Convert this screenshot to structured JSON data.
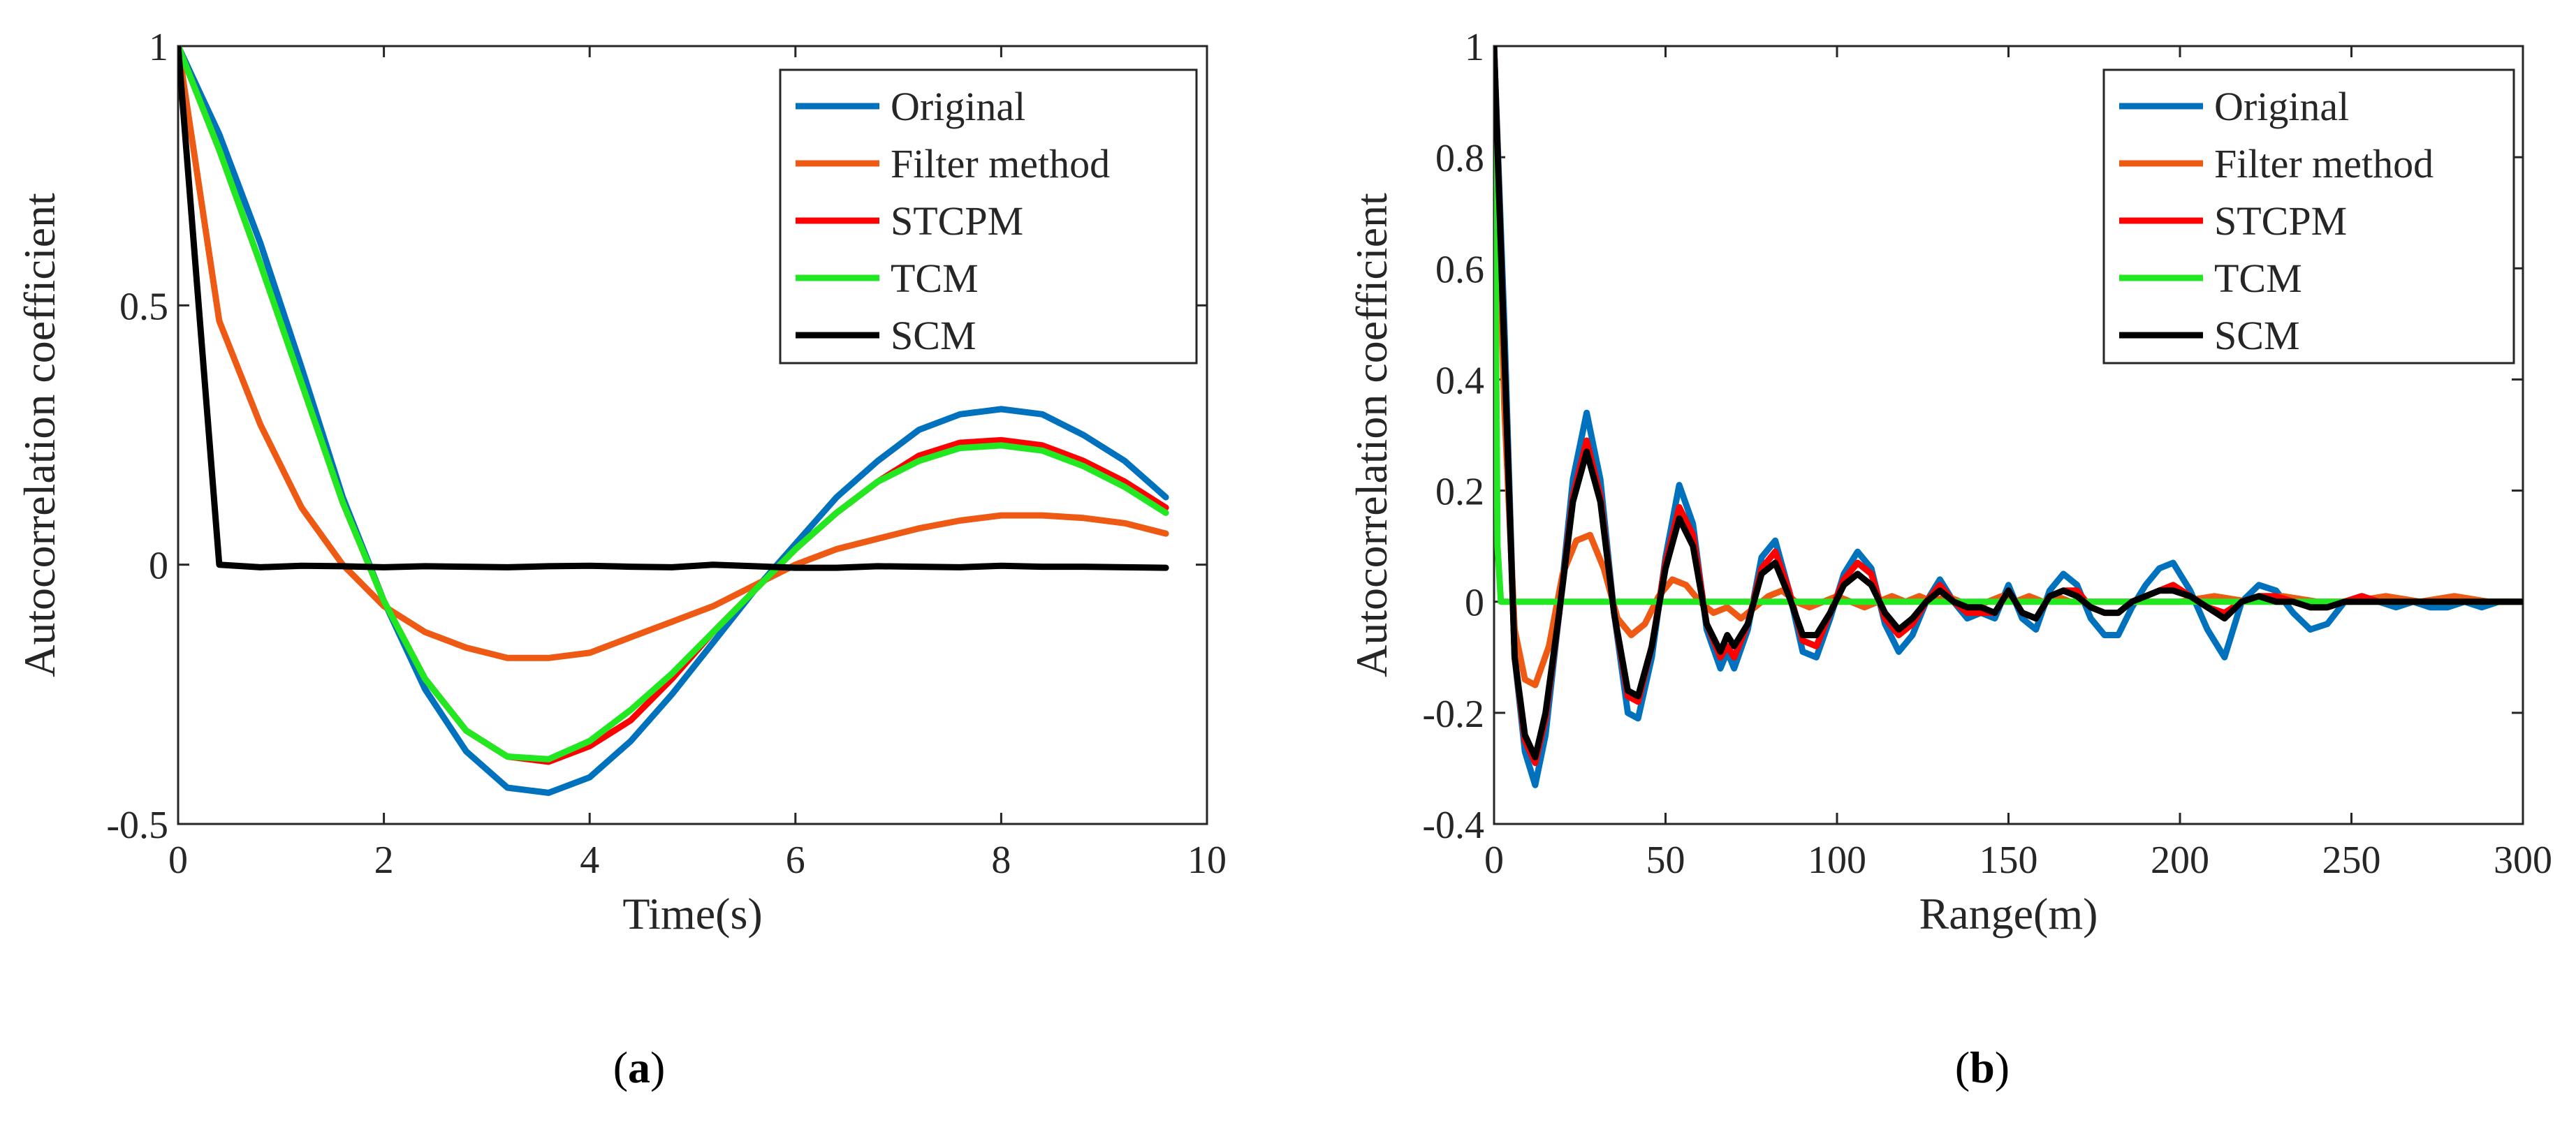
{
  "chart_data": [
    {
      "type": "line",
      "caption_open": "(",
      "caption_letter": "a",
      "caption_close": ")",
      "xlabel": "Time(s)",
      "ylabel": "Autocorrelation coefficient",
      "xlim": [
        0,
        10
      ],
      "ylim": [
        -0.5,
        1
      ],
      "xticks": [
        0,
        2,
        4,
        6,
        8,
        10
      ],
      "yticks": [
        -0.5,
        0,
        0.5,
        1
      ],
      "xtick_labels": [
        "0",
        "2",
        "4",
        "6",
        "8",
        "10"
      ],
      "ytick_labels": [
        "-0.5",
        "0",
        "0.5",
        "1"
      ],
      "legend_position": "top-right",
      "series": [
        {
          "name": "Original",
          "color": "#0072BD",
          "x": [
            0,
            0.4,
            0.8,
            1.2,
            1.6,
            2.0,
            2.4,
            2.8,
            3.2,
            3.6,
            4.0,
            4.4,
            4.8,
            5.2,
            5.6,
            6.0,
            6.4,
            6.8,
            7.2,
            7.6,
            8.0,
            8.4,
            8.8,
            9.2,
            9.6
          ],
          "y": [
            1.0,
            0.83,
            0.62,
            0.38,
            0.13,
            -0.07,
            -0.24,
            -0.36,
            -0.43,
            -0.44,
            -0.41,
            -0.34,
            -0.25,
            -0.15,
            -0.05,
            0.04,
            0.13,
            0.2,
            0.26,
            0.29,
            0.3,
            0.29,
            0.25,
            0.2,
            0.13
          ]
        },
        {
          "name": "Filter method",
          "color": "#EE5A14",
          "x": [
            0,
            0.4,
            0.8,
            1.2,
            1.6,
            2.0,
            2.4,
            2.8,
            3.2,
            3.6,
            4.0,
            4.4,
            4.8,
            5.2,
            5.6,
            6.0,
            6.4,
            6.8,
            7.2,
            7.6,
            8.0,
            8.4,
            8.8,
            9.2,
            9.6
          ],
          "y": [
            1.0,
            0.47,
            0.27,
            0.11,
            0.0,
            -0.08,
            -0.13,
            -0.16,
            -0.18,
            -0.18,
            -0.17,
            -0.14,
            -0.11,
            -0.08,
            -0.04,
            0.0,
            0.03,
            0.05,
            0.07,
            0.085,
            0.095,
            0.095,
            0.09,
            0.08,
            0.06
          ]
        },
        {
          "name": "STCPM",
          "color": "#FF0000",
          "x": [
            0,
            0.4,
            0.8,
            1.2,
            1.6,
            2.0,
            2.4,
            2.8,
            3.2,
            3.6,
            4.0,
            4.4,
            4.8,
            5.2,
            5.6,
            6.0,
            6.4,
            6.8,
            7.2,
            7.6,
            8.0,
            8.4,
            8.8,
            9.2,
            9.6
          ],
          "y": [
            1.0,
            0.8,
            0.58,
            0.35,
            0.12,
            -0.07,
            -0.22,
            -0.32,
            -0.37,
            -0.38,
            -0.35,
            -0.3,
            -0.22,
            -0.13,
            -0.05,
            0.03,
            0.1,
            0.16,
            0.21,
            0.235,
            0.24,
            0.23,
            0.2,
            0.16,
            0.11
          ]
        },
        {
          "name": "TCM",
          "color": "#22E822",
          "x": [
            0,
            0.4,
            0.8,
            1.2,
            1.6,
            2.0,
            2.4,
            2.8,
            3.2,
            3.6,
            4.0,
            4.4,
            4.8,
            5.2,
            5.6,
            6.0,
            6.4,
            6.8,
            7.2,
            7.6,
            8.0,
            8.4,
            8.8,
            9.2,
            9.6
          ],
          "y": [
            1.0,
            0.8,
            0.58,
            0.35,
            0.12,
            -0.07,
            -0.22,
            -0.32,
            -0.37,
            -0.375,
            -0.34,
            -0.28,
            -0.21,
            -0.13,
            -0.05,
            0.03,
            0.1,
            0.16,
            0.2,
            0.225,
            0.23,
            0.22,
            0.19,
            0.15,
            0.1
          ]
        },
        {
          "name": "SCM",
          "color": "#000000",
          "x": [
            0,
            0.4,
            0.8,
            1.2,
            1.6,
            2.0,
            2.4,
            2.8,
            3.2,
            3.6,
            4.0,
            4.4,
            4.8,
            5.2,
            5.6,
            6.0,
            6.4,
            6.8,
            7.2,
            7.6,
            8.0,
            8.4,
            8.8,
            9.2,
            9.6
          ],
          "y": [
            1.0,
            0.0,
            -0.005,
            -0.002,
            -0.003,
            -0.005,
            -0.003,
            -0.004,
            -0.005,
            -0.003,
            -0.002,
            -0.004,
            -0.005,
            0.0,
            -0.003,
            -0.006,
            -0.006,
            -0.003,
            -0.004,
            -0.005,
            -0.002,
            -0.004,
            -0.004,
            -0.005,
            -0.006
          ]
        }
      ]
    },
    {
      "type": "line",
      "caption_open": "(",
      "caption_letter": "b",
      "caption_close": ")",
      "xlabel": "Range(m)",
      "ylabel": "Autocorrelation coefficient",
      "xlim": [
        0,
        300
      ],
      "ylim": [
        -0.4,
        1
      ],
      "xticks": [
        0,
        50,
        100,
        150,
        200,
        250,
        300
      ],
      "yticks": [
        -0.4,
        -0.2,
        0,
        0.2,
        0.4,
        0.6,
        0.8,
        1
      ],
      "xtick_labels": [
        "0",
        "50",
        "100",
        "150",
        "200",
        "250",
        "300"
      ],
      "ytick_labels": [
        "-0.4",
        "-0.2",
        "0",
        "0.2",
        "0.4",
        "0.6",
        "0.8",
        "1"
      ],
      "legend_position": "top-right",
      "series": [
        {
          "name": "Original",
          "color": "#0072BD",
          "x": [
            0,
            3,
            6,
            9,
            12,
            15,
            19,
            23,
            27,
            31,
            35,
            39,
            42,
            46,
            50,
            54,
            58,
            62,
            66,
            68,
            70,
            74,
            78,
            82,
            86,
            90,
            94,
            98,
            102,
            106,
            110,
            114,
            118,
            122,
            126,
            130,
            134,
            138,
            142,
            146,
            150,
            154,
            158,
            162,
            166,
            170,
            174,
            178,
            182,
            186,
            190,
            194,
            198,
            203,
            208,
            213,
            218,
            223,
            228,
            233,
            238,
            243,
            248,
            253,
            258,
            263,
            268,
            273,
            278,
            283,
            288,
            293,
            300
          ],
          "y": [
            1,
            0.5,
            -0.1,
            -0.27,
            -0.33,
            -0.24,
            -0.02,
            0.22,
            0.34,
            0.22,
            -0.02,
            -0.2,
            -0.21,
            -0.1,
            0.08,
            0.21,
            0.14,
            -0.05,
            -0.12,
            -0.09,
            -0.12,
            -0.05,
            0.08,
            0.11,
            0.02,
            -0.09,
            -0.1,
            -0.03,
            0.05,
            0.09,
            0.06,
            -0.04,
            -0.09,
            -0.06,
            0.0,
            0.04,
            0.0,
            -0.03,
            -0.02,
            -0.03,
            0.03,
            -0.03,
            -0.05,
            0.02,
            0.05,
            0.03,
            -0.03,
            -0.06,
            -0.06,
            -0.01,
            0.03,
            0.06,
            0.07,
            0.02,
            -0.05,
            -0.1,
            0.0,
            0.03,
            0.02,
            -0.02,
            -0.05,
            -0.04,
            0.0,
            0.01,
            0.0,
            -0.01,
            0.0,
            -0.01,
            -0.01,
            0.0,
            -0.01,
            0.0,
            0.0
          ]
        },
        {
          "name": "Filter method",
          "color": "#EE5A14",
          "x": [
            0,
            3,
            6,
            9,
            12,
            16,
            20,
            24,
            28,
            32,
            36,
            40,
            44,
            48,
            52,
            56,
            60,
            64,
            68,
            72,
            76,
            80,
            84,
            88,
            92,
            96,
            100,
            104,
            108,
            112,
            116,
            120,
            124,
            128,
            132,
            136,
            140,
            144,
            148,
            152,
            156,
            160,
            164,
            168,
            172,
            176,
            180,
            190,
            200,
            210,
            220,
            230,
            240,
            250,
            260,
            270,
            280,
            290,
            300
          ],
          "y": [
            1,
            0.35,
            -0.05,
            -0.14,
            -0.15,
            -0.08,
            0.05,
            0.11,
            0.12,
            0.06,
            -0.03,
            -0.06,
            -0.04,
            0.01,
            0.04,
            0.03,
            0.0,
            -0.02,
            -0.01,
            -0.03,
            -0.01,
            0.01,
            0.02,
            0.0,
            -0.01,
            0.0,
            0.01,
            0.0,
            -0.01,
            0.0,
            0.01,
            0.0,
            0.01,
            0.0,
            0.01,
            0.0,
            -0.01,
            0.0,
            0.01,
            0.0,
            0.01,
            0.0,
            0.01,
            0.0,
            0.0,
            0.0,
            0.0,
            0.0,
            0.0,
            0.01,
            0.0,
            0.01,
            0.0,
            0.0,
            0.01,
            0.0,
            0.01,
            0.0,
            0.0
          ]
        },
        {
          "name": "STCPM",
          "color": "#FF0000",
          "x": [
            0,
            3,
            6,
            9,
            12,
            15,
            19,
            23,
            27,
            31,
            35,
            39,
            42,
            46,
            50,
            54,
            58,
            62,
            66,
            68,
            70,
            74,
            78,
            82,
            86,
            90,
            94,
            98,
            102,
            106,
            110,
            114,
            118,
            122,
            126,
            130,
            134,
            138,
            142,
            146,
            150,
            154,
            158,
            162,
            166,
            170,
            174,
            178,
            182,
            186,
            190,
            194,
            198,
            203,
            208,
            213,
            218,
            223,
            228,
            233,
            238,
            243,
            248,
            253,
            258,
            263,
            268,
            273,
            278,
            283,
            288,
            293,
            300
          ],
          "y": [
            1,
            0.45,
            -0.1,
            -0.25,
            -0.29,
            -0.21,
            -0.02,
            0.19,
            0.29,
            0.19,
            -0.02,
            -0.17,
            -0.18,
            -0.08,
            0.07,
            0.17,
            0.12,
            -0.04,
            -0.1,
            -0.08,
            -0.1,
            -0.04,
            0.06,
            0.09,
            0.02,
            -0.07,
            -0.08,
            -0.02,
            0.04,
            0.07,
            0.05,
            -0.03,
            -0.06,
            -0.04,
            0.0,
            0.03,
            0.0,
            -0.02,
            -0.02,
            -0.02,
            0.02,
            -0.02,
            -0.03,
            0.01,
            0.02,
            0.02,
            -0.01,
            -0.02,
            -0.02,
            0.0,
            0.01,
            0.02,
            0.03,
            0.01,
            -0.01,
            -0.02,
            0.0,
            0.01,
            0.01,
            0.0,
            -0.01,
            -0.01,
            0.0,
            0.01,
            0.0,
            0.0,
            0.0,
            0.0,
            0.0,
            0.0,
            0.0,
            0.0,
            0.0
          ]
        },
        {
          "name": "TCM",
          "color": "#22E822",
          "x": [
            0,
            1,
            2,
            5,
            50,
            100,
            150,
            200,
            250,
            300
          ],
          "y": [
            1,
            0.1,
            0,
            0,
            0,
            0,
            0,
            0,
            0,
            0
          ]
        },
        {
          "name": "SCM",
          "color": "#000000",
          "x": [
            0,
            3,
            6,
            9,
            12,
            15,
            19,
            23,
            27,
            31,
            35,
            39,
            42,
            46,
            50,
            54,
            58,
            62,
            66,
            68,
            70,
            74,
            78,
            82,
            86,
            90,
            94,
            98,
            102,
            106,
            110,
            114,
            118,
            122,
            126,
            130,
            134,
            138,
            142,
            146,
            150,
            154,
            158,
            162,
            166,
            170,
            174,
            178,
            182,
            186,
            190,
            194,
            198,
            203,
            208,
            213,
            218,
            223,
            228,
            233,
            238,
            243,
            248,
            253,
            258,
            263,
            268,
            273,
            278,
            283,
            288,
            293,
            300
          ],
          "y": [
            1,
            0.45,
            -0.1,
            -0.24,
            -0.28,
            -0.2,
            -0.02,
            0.18,
            0.27,
            0.18,
            -0.02,
            -0.16,
            -0.17,
            -0.08,
            0.06,
            0.15,
            0.1,
            -0.04,
            -0.09,
            -0.06,
            -0.08,
            -0.04,
            0.05,
            0.07,
            0.01,
            -0.06,
            -0.06,
            -0.02,
            0.03,
            0.05,
            0.03,
            -0.02,
            -0.05,
            -0.03,
            0.0,
            0.02,
            0.0,
            -0.01,
            -0.01,
            -0.02,
            0.02,
            -0.02,
            -0.03,
            0.01,
            0.02,
            0.01,
            -0.01,
            -0.02,
            -0.02,
            0.0,
            0.01,
            0.02,
            0.02,
            0.01,
            -0.01,
            -0.03,
            0.0,
            0.01,
            0.0,
            0.0,
            -0.01,
            -0.01,
            0.0,
            0.0,
            0.0,
            0.0,
            0.0,
            0.0,
            0.0,
            0.0,
            0.0,
            0.0,
            0.0
          ]
        }
      ]
    }
  ]
}
